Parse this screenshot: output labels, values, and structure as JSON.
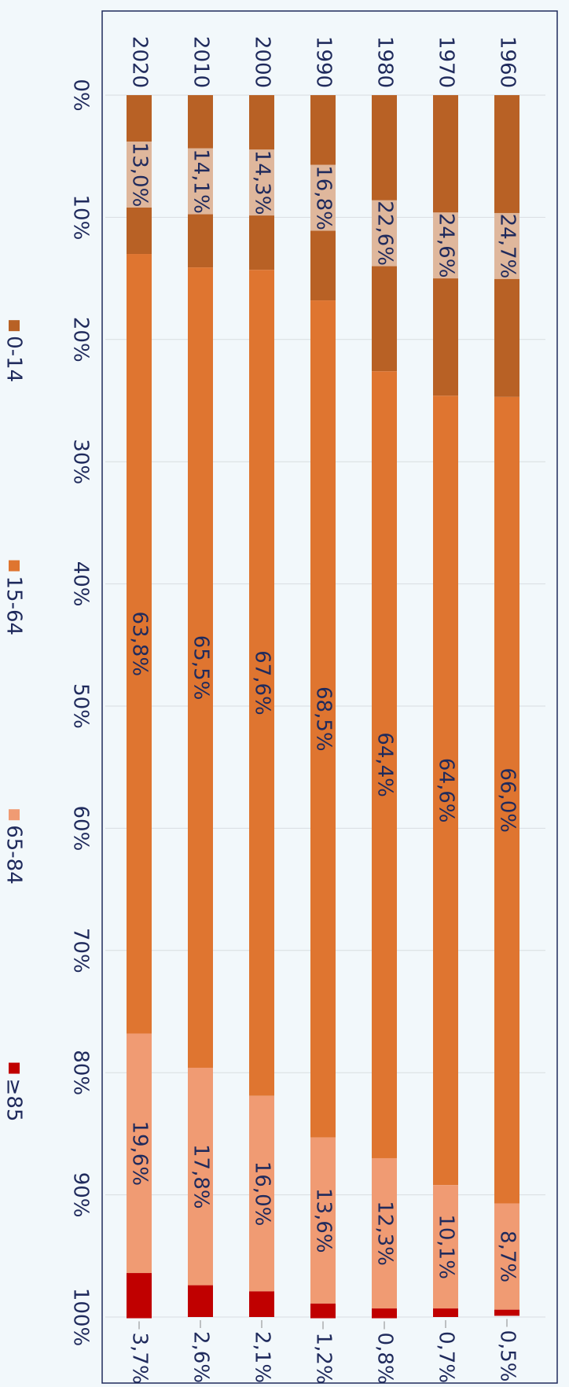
{
  "chart_data": {
    "type": "stacked_bar_horizontal",
    "categories": [
      "1960",
      "1970",
      "1980",
      "1990",
      "2000",
      "2010",
      "2020"
    ],
    "series": [
      {
        "name": "0-14",
        "color": "#b86125",
        "values": [
          24.7,
          24.6,
          22.6,
          16.8,
          14.3,
          14.1,
          13.0
        ],
        "value_labels": [
          "24,7%",
          "24,6%",
          "22,6%",
          "16,8%",
          "14,3%",
          "14,1%",
          "13,0%"
        ]
      },
      {
        "name": "15-64",
        "color": "#df7530",
        "values": [
          66.0,
          64.6,
          64.4,
          68.5,
          67.6,
          65.5,
          63.8
        ],
        "value_labels": [
          "66,0%",
          "64,6%",
          "64,4%",
          "68,5%",
          "67,6%",
          "65,5%",
          "63,8%"
        ]
      },
      {
        "name": "65-84",
        "color": "#f09b73",
        "values": [
          8.7,
          10.1,
          12.3,
          13.6,
          16.0,
          17.8,
          19.6
        ],
        "value_labels": [
          "8,7%",
          "10,1%",
          "12,3%",
          "13,6%",
          "16,0%",
          "17,8%",
          "19,6%"
        ]
      },
      {
        "name": "≥85",
        "color": "#c00000",
        "values": [
          0.5,
          0.7,
          0.8,
          1.2,
          2.1,
          2.6,
          3.7
        ],
        "value_labels": [
          "0,5%",
          "0,7%",
          "0,8%",
          "1,2%",
          "2,1%",
          "2,6%",
          "3,7%"
        ]
      }
    ],
    "xlim": [
      0,
      100
    ],
    "xticks": [
      {
        "value": 0,
        "label": "0%"
      },
      {
        "value": 10,
        "label": "10%"
      },
      {
        "value": 20,
        "label": "20%"
      },
      {
        "value": 30,
        "label": "30%"
      },
      {
        "value": 40,
        "label": "40%"
      },
      {
        "value": 50,
        "label": "50%"
      },
      {
        "value": 60,
        "label": "60%"
      },
      {
        "value": 70,
        "label": "70%"
      },
      {
        "value": 80,
        "label": "80%"
      },
      {
        "value": 90,
        "label": "90%"
      },
      {
        "value": 100,
        "label": "100%"
      }
    ],
    "grid": true,
    "legend": "bottom"
  }
}
